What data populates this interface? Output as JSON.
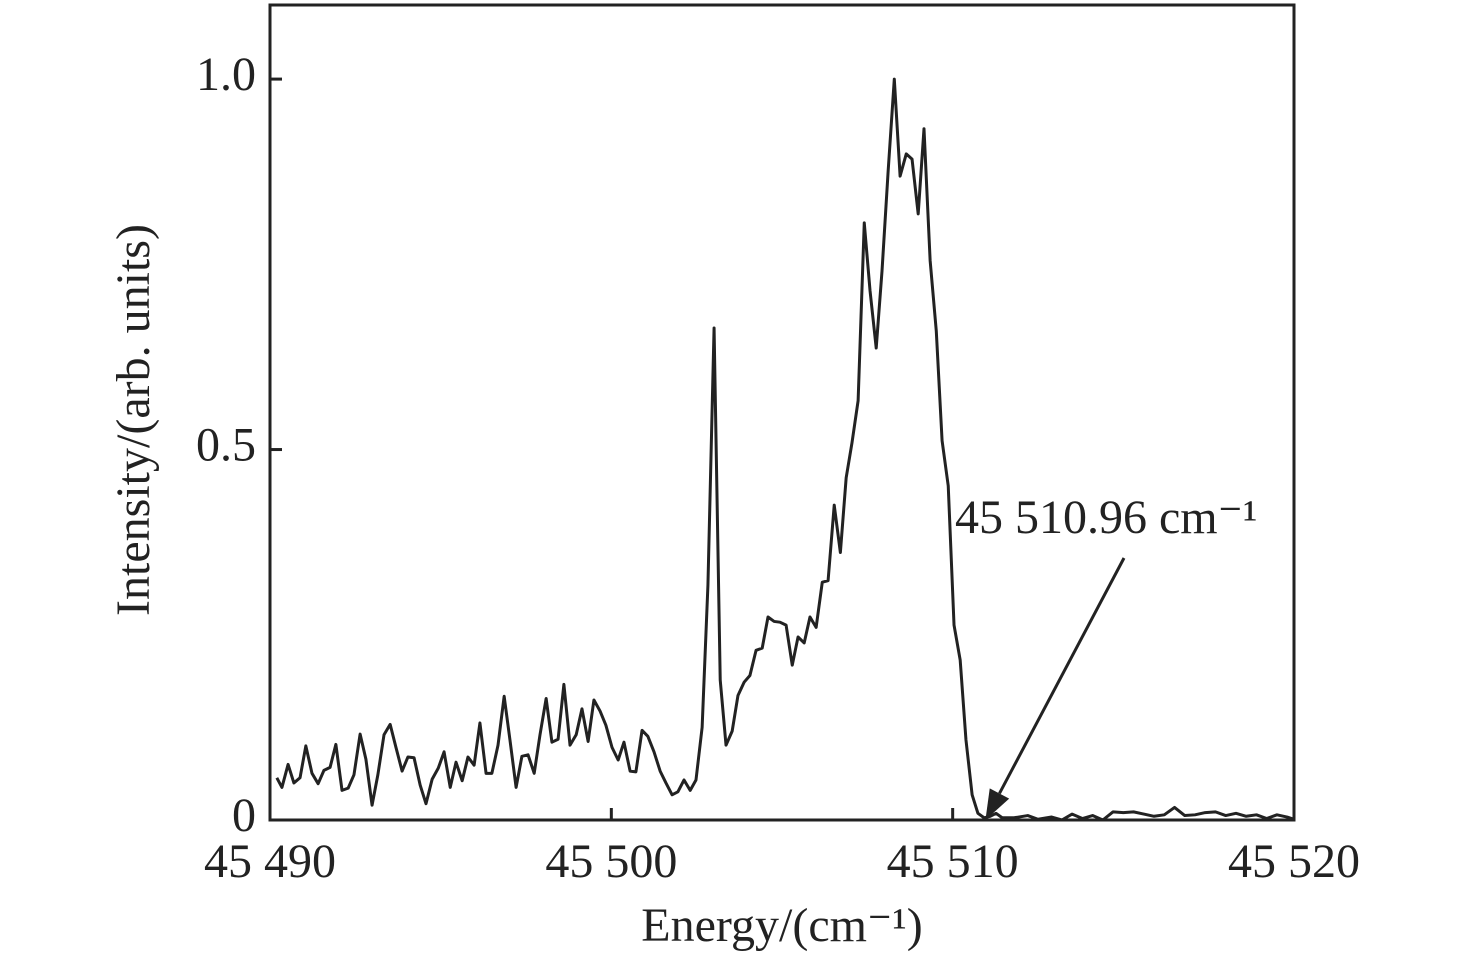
{
  "chart_data": {
    "type": "line",
    "x_label": "Energy/(cm⁻¹)",
    "y_label": "Intensity/(arb. units)",
    "annotation": {
      "text": "45 510.96 cm⁻¹",
      "x": 45510.96,
      "y": 0
    },
    "xlim": [
      45490,
      45520
    ],
    "ylim": [
      0,
      1.1
    ],
    "xticks": [
      {
        "value": 45490,
        "label": "45 490"
      },
      {
        "value": 45500,
        "label": "45 500"
      },
      {
        "value": 45510,
        "label": "45 510"
      },
      {
        "value": 45520,
        "label": "45 520"
      }
    ],
    "yticks": [
      0,
      0.5,
      {
        "value": 1,
        "label": "1.0"
      }
    ],
    "color": "#222222",
    "x": [
      45490.2,
      45490.35,
      45490.53,
      45490.7,
      45490.88,
      45491.05,
      45491.23,
      45491.41,
      45491.58,
      45491.76,
      45491.93,
      45492.11,
      45492.29,
      45492.46,
      45492.64,
      45492.81,
      45492.99,
      45493.16,
      45493.34,
      45493.52,
      45493.69,
      45493.87,
      45494.04,
      45494.22,
      45494.4,
      45494.57,
      45494.75,
      45494.93,
      45495.1,
      45495.28,
      45495.45,
      45495.63,
      45495.8,
      45495.98,
      45496.15,
      45496.33,
      45496.5,
      45496.68,
      45496.86,
      45497.03,
      45497.21,
      45497.38,
      45497.56,
      45497.74,
      45497.91,
      45498.09,
      45498.26,
      45498.44,
      45498.61,
      45498.79,
      45498.97,
      45499.14,
      45499.32,
      45499.49,
      45499.67,
      45499.84,
      45500.02,
      45500.2,
      45500.37,
      45500.55,
      45500.72,
      45500.9,
      45501.07,
      45501.25,
      45501.43,
      45501.6,
      45501.78,
      45501.95,
      45502.13,
      45502.31,
      45502.48,
      45502.66,
      45502.83,
      45503.01,
      45503.19,
      45503.36,
      45503.54,
      45503.71,
      45503.89,
      45504.06,
      45504.24,
      45504.42,
      45504.59,
      45504.77,
      45504.94,
      45505.12,
      45505.3,
      45505.47,
      45505.65,
      45505.82,
      45506.0,
      45506.18,
      45506.35,
      45506.53,
      45506.71,
      45506.88,
      45507.05,
      45507.23,
      45507.41,
      45507.58,
      45507.76,
      45507.93,
      45508.11,
      45508.29,
      45508.46,
      45508.64,
      45508.81,
      45508.99,
      45509.16,
      45509.34,
      45509.52,
      45509.69,
      45509.87,
      45510.04,
      45510.22,
      45510.39,
      45510.57,
      45510.74,
      45510.92,
      45511.1,
      45511.27,
      45511.45,
      45511.8,
      45512.2,
      45512.5,
      45512.9,
      45513.2,
      45513.5,
      45513.8,
      45514.1,
      45514.4,
      45514.7,
      45515.0,
      45515.3,
      45515.6,
      45515.9,
      45516.2,
      45516.5,
      45516.8,
      45517.1,
      45517.4,
      45517.7,
      45518.0,
      45518.3,
      45518.6,
      45518.9,
      45519.2,
      45519.5,
      45519.8,
      45520.0
    ],
    "values": [
      0.057,
      0.044,
      0.075,
      0.05,
      0.057,
      0.1,
      0.063,
      0.049,
      0.067,
      0.071,
      0.102,
      0.04,
      0.043,
      0.061,
      0.116,
      0.082,
      0.02,
      0.061,
      0.115,
      0.129,
      0.098,
      0.066,
      0.085,
      0.084,
      0.047,
      0.022,
      0.055,
      0.07,
      0.092,
      0.044,
      0.078,
      0.053,
      0.085,
      0.074,
      0.131,
      0.063,
      0.063,
      0.101,
      0.167,
      0.108,
      0.044,
      0.086,
      0.088,
      0.063,
      0.115,
      0.164,
      0.105,
      0.109,
      0.183,
      0.101,
      0.115,
      0.15,
      0.106,
      0.162,
      0.147,
      0.128,
      0.098,
      0.081,
      0.105,
      0.066,
      0.065,
      0.121,
      0.113,
      0.092,
      0.066,
      0.05,
      0.034,
      0.038,
      0.054,
      0.04,
      0.054,
      0.125,
      0.317,
      0.664,
      0.189,
      0.101,
      0.12,
      0.168,
      0.186,
      0.195,
      0.229,
      0.232,
      0.274,
      0.268,
      0.267,
      0.263,
      0.209,
      0.247,
      0.239,
      0.274,
      0.26,
      0.321,
      0.323,
      0.425,
      0.361,
      0.462,
      0.509,
      0.566,
      0.806,
      0.714,
      0.637,
      0.741,
      0.876,
      1.0,
      0.869,
      0.899,
      0.892,
      0.818,
      0.933,
      0.755,
      0.66,
      0.512,
      0.451,
      0.263,
      0.216,
      0.108,
      0.034,
      0.009,
      0.003,
      0.005,
      0.009,
      0.003,
      0.003,
      0.006,
      0.001,
      0.004,
      0.0,
      0.008,
      0.002,
      0.006,
      0.0,
      0.011,
      0.01,
      0.011,
      0.008,
      0.005,
      0.007,
      0.017,
      0.006,
      0.007,
      0.01,
      0.011,
      0.006,
      0.009,
      0.005,
      0.007,
      0.002,
      0.007,
      0.004,
      0.001
    ]
  }
}
